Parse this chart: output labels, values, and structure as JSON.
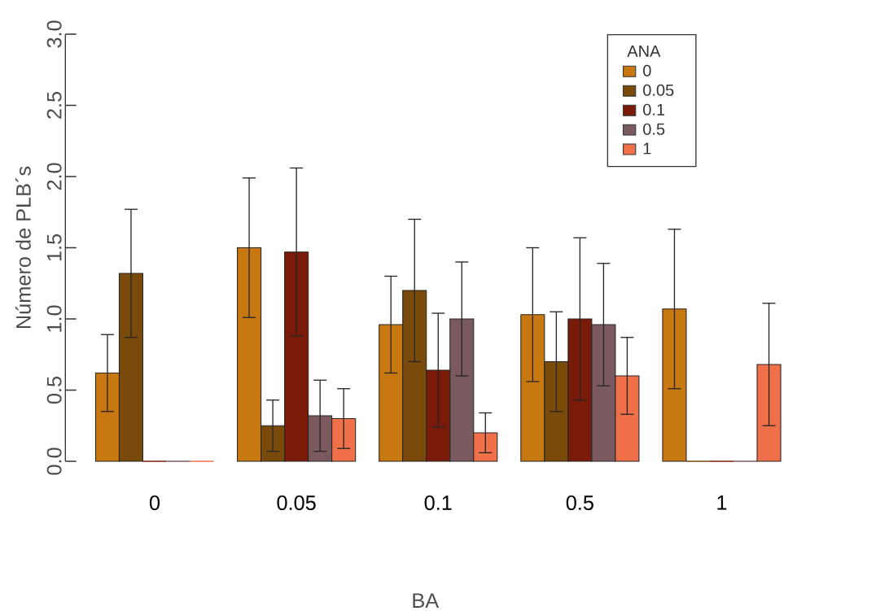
{
  "chart_data": {
    "type": "bar",
    "xlabel": "BA",
    "ylabel": "Número de PLB´s",
    "legend_title": "ANA",
    "legend": "top right",
    "categories": [
      "0",
      "0.05",
      "0.1",
      "0.5",
      "1"
    ],
    "ylim": [
      0,
      3
    ],
    "yticks": [
      {
        "value": 0,
        "label": "0.0"
      },
      0.5,
      {
        "value": 1,
        "label": "1.0"
      },
      1.5,
      {
        "value": 2,
        "label": "2.0"
      },
      2.5,
      {
        "value": 3,
        "label": "3.0"
      }
    ],
    "series": [
      {
        "name": "0",
        "color": "#c87810",
        "values": [
          0.62,
          1.5,
          0.96,
          1.03,
          1.07
        ],
        "errors": [
          0.27,
          0.49,
          0.34,
          0.47,
          0.56
        ]
      },
      {
        "name": "0.05",
        "color": "#7a4a0a",
        "values": [
          1.32,
          0.25,
          1.2,
          0.7,
          0
        ],
        "errors": [
          0.45,
          0.18,
          0.5,
          0.35,
          null
        ]
      },
      {
        "name": "0.1",
        "color": "#7a1a08",
        "values": [
          0,
          1.47,
          0.64,
          1.0,
          0
        ],
        "errors": [
          null,
          0.59,
          0.4,
          0.57,
          null
        ]
      },
      {
        "name": "0.5",
        "color": "#7a5a5e",
        "values": [
          0,
          0.32,
          1.0,
          0.96,
          0
        ],
        "errors": [
          null,
          0.25,
          0.4,
          0.43,
          null
        ]
      },
      {
        "name": "1",
        "color": "#f0704a",
        "values": [
          0,
          0.3,
          0.2,
          0.6,
          0.68
        ],
        "errors": [
          null,
          0.21,
          0.14,
          0.27,
          0.43
        ]
      }
    ]
  }
}
